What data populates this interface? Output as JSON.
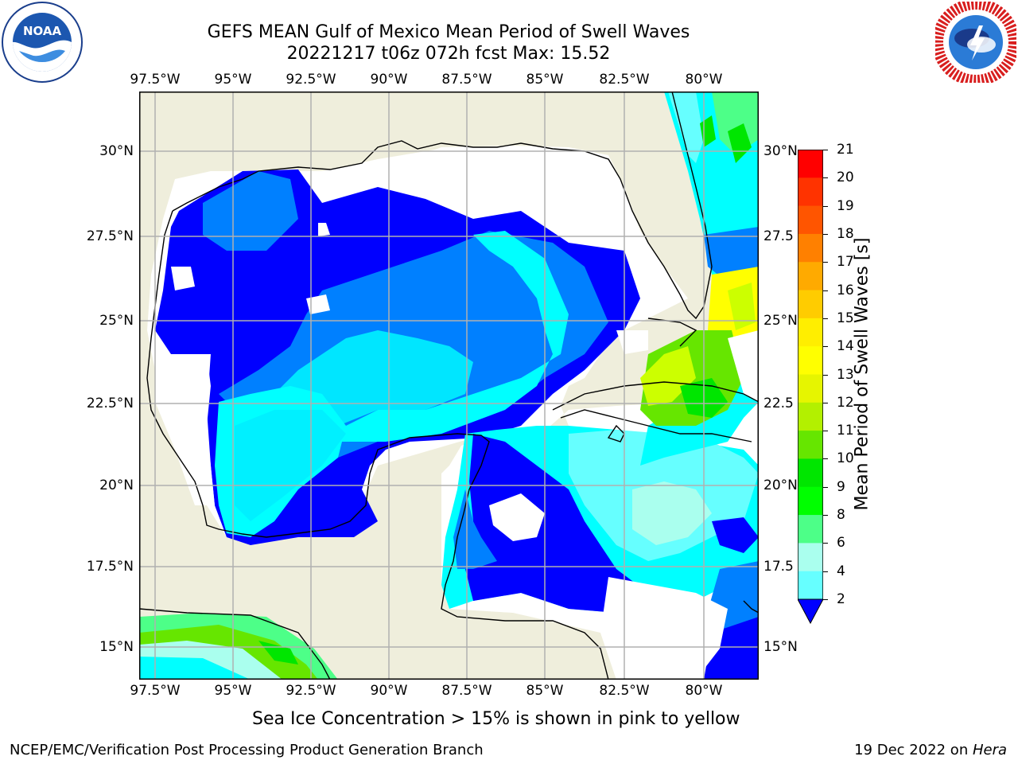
{
  "title_line1": "GEFS MEAN Gulf of Mexico Mean Period of Swell Waves",
  "title_line2": "20221217 t06z 072h fcst   Max: 15.52",
  "top_lon_labels": [
    "97.5°W",
    "95°W",
    "92.5°W",
    "90°W",
    "87.5°W",
    "85°W",
    "82.5°W",
    "80°W"
  ],
  "bottom_lon_labels": [
    "97.5°W",
    "95°W",
    "92.5°W",
    "90°W",
    "87.5°W",
    "85°W",
    "82.5°W",
    "80°W"
  ],
  "left_lat_labels": [
    "30°N",
    "27.5°N",
    "25°N",
    "22.5°N",
    "20°N",
    "17.5°N",
    "15°N"
  ],
  "right_lat_labels": [
    "30°N",
    "27.5",
    "25°N",
    "22.5",
    "20°N",
    "17.5",
    "15°N"
  ],
  "colorbar": {
    "label": "Mean Period of Swell Waves [s]",
    "ticks": [
      "21",
      "20",
      "19",
      "18",
      "17",
      "16",
      "15",
      "14",
      "13",
      "12",
      "11",
      "10",
      "9",
      "8",
      "6",
      "4",
      "2"
    ],
    "colors": [
      "#ff0000",
      "#ff3300",
      "#ff5500",
      "#ff8000",
      "#ffaa00",
      "#ffcc00",
      "#ffee00",
      "#ffff00",
      "#e6f500",
      "#b3f000",
      "#66e600",
      "#00e600",
      "#00ff00",
      "#4dff88",
      "#aaffee",
      "#66ffff",
      "#00ffff",
      "#00e6ff",
      "#0080ff",
      "#0000ff"
    ],
    "extend_color": "#0000ff"
  },
  "caption": "Sea Ice Concentration > 15% is shown in pink to yellow",
  "footer_left": "NCEP/EMC/Verification Post Processing Product Generation Branch",
  "footer_right_date": "19 Dec 2022 on ",
  "footer_right_host": "Hera",
  "logos": {
    "noaa_text": "NOAA",
    "noaa_ring": "NATIONAL OCEANIC AND ATMOSPHERIC ADMINISTRATION · U.S. DEPARTMENT OF COMMERCE",
    "nws_ring": "NATIONAL WEATHER SERVICE"
  },
  "map_colors": {
    "land": "#efeedc",
    "ocean_blank": "#ffffff",
    "grid": "#b0b0b0"
  }
}
